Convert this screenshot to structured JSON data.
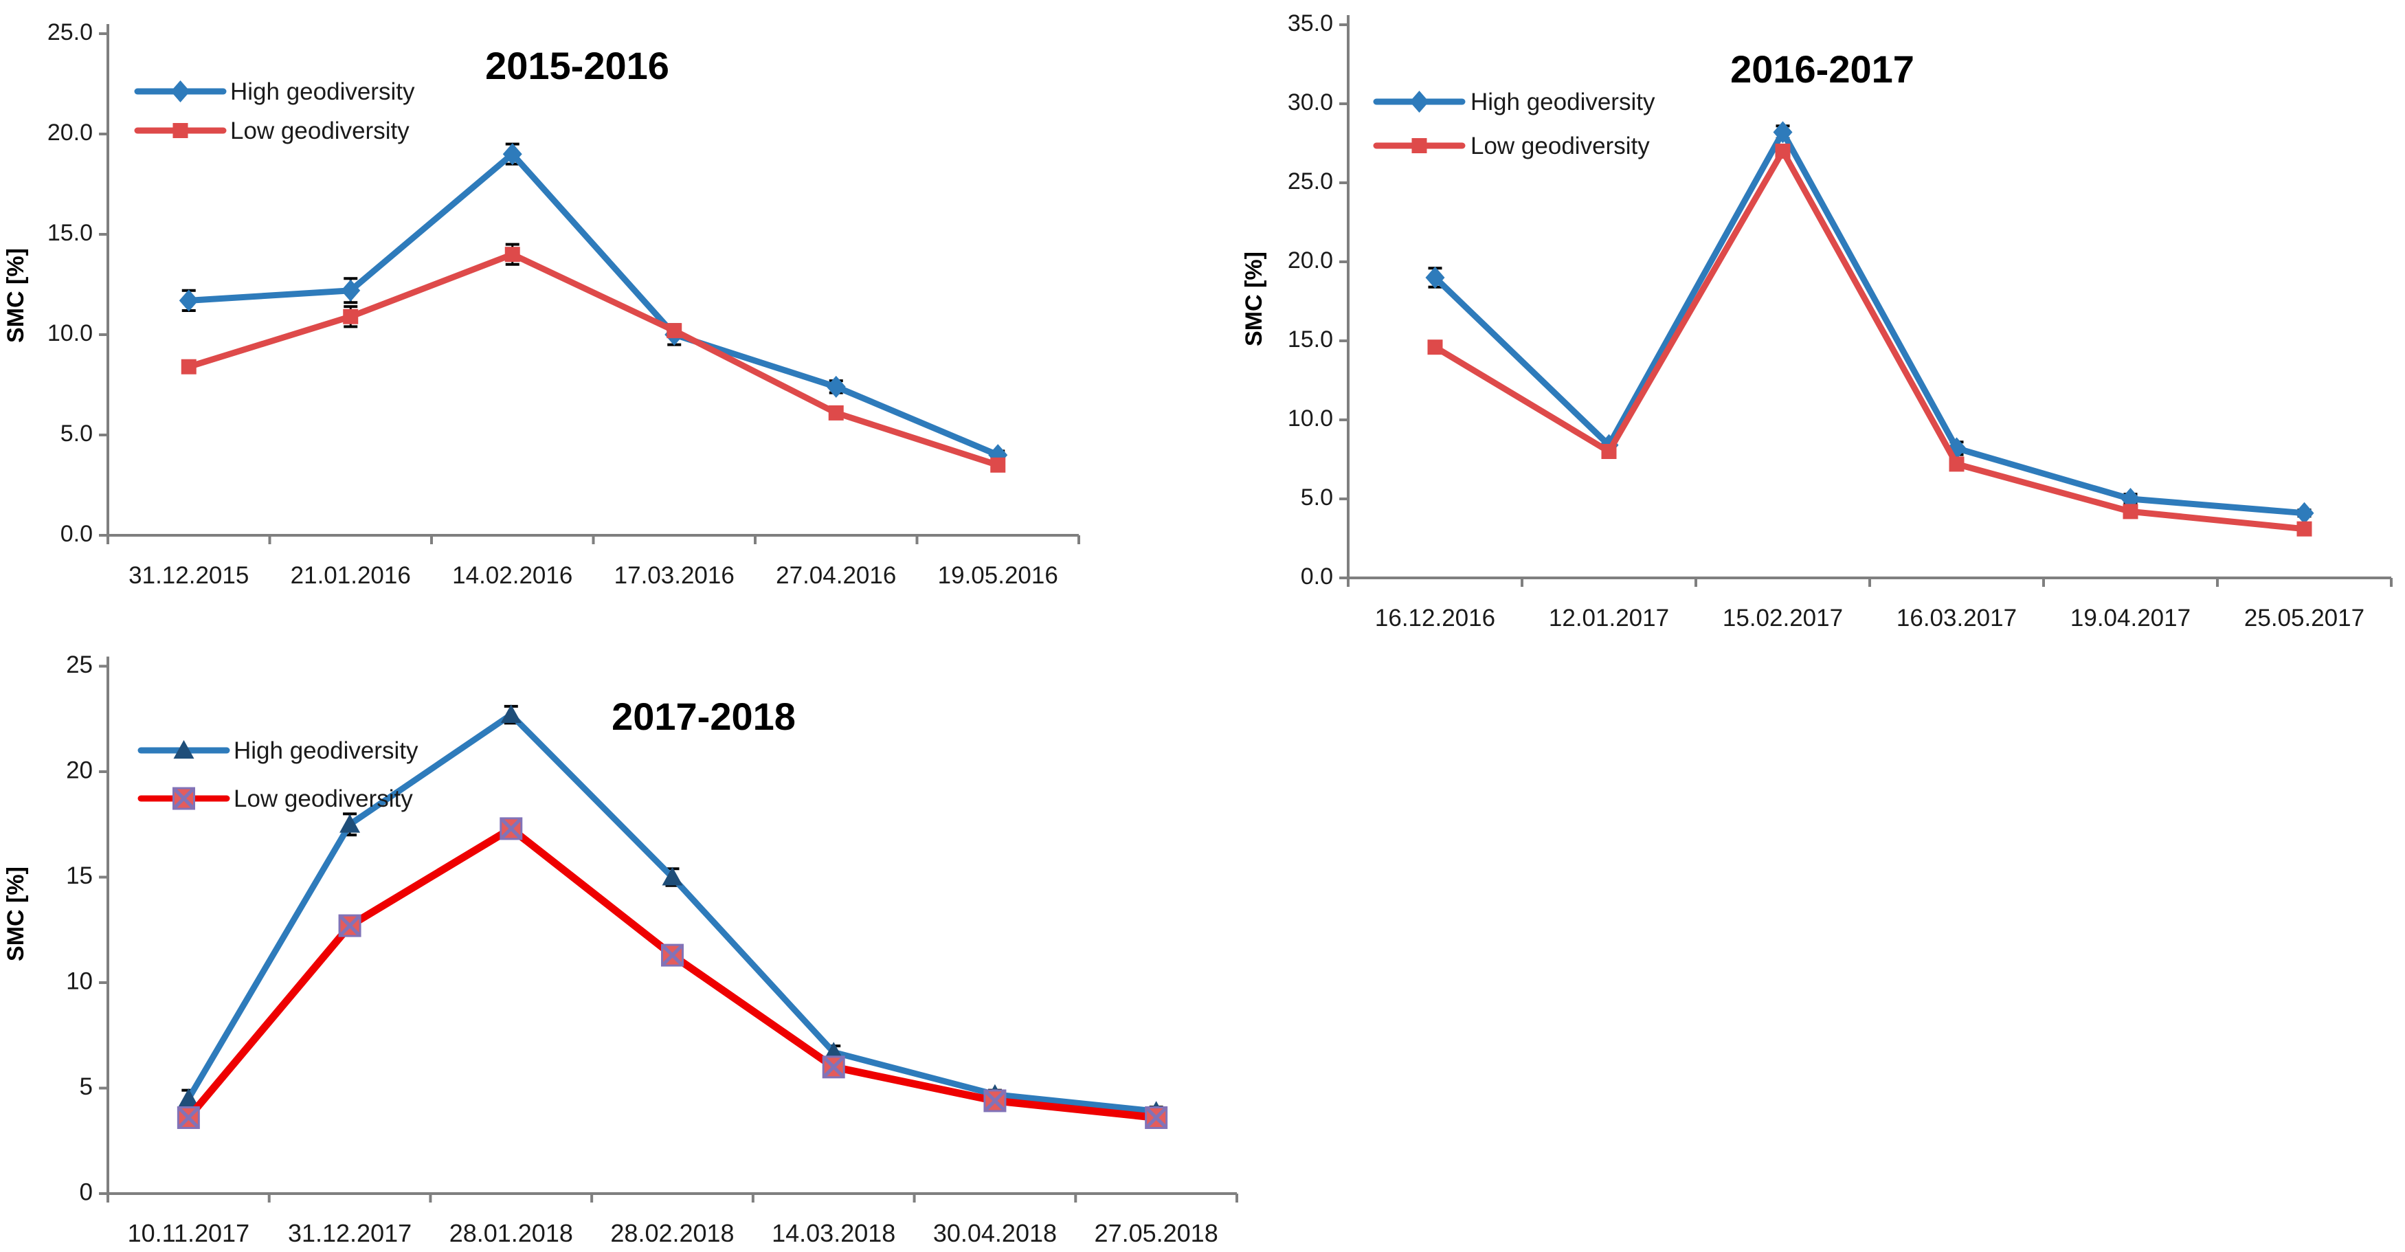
{
  "figure_background": "#ffffff",
  "chart_data": [
    {
      "type": "line",
      "title": "2015-2016",
      "ylabel": "SMC [%]",
      "xlabel": "",
      "grid": false,
      "legend_position": "top-left-inside",
      "y_axis": {
        "min": 0,
        "max": 25,
        "step": 5,
        "decimals": 1
      },
      "categories": [
        "31.12.2015",
        "21.01.2016",
        "14.02.2016",
        "17.03.2016",
        "27.04.2016",
        "19.05.2016"
      ],
      "series": [
        {
          "name": "High geodiversity",
          "color": "#2E7BBB",
          "marker": "diamond",
          "marker_color": "#2E7BBB",
          "line_width": 9,
          "values": [
            11.7,
            12.2,
            19.0,
            10.0,
            7.4,
            4.0
          ],
          "errors": [
            0.5,
            0.6,
            0.5,
            0.5,
            0.3,
            0.2
          ]
        },
        {
          "name": "Low geodiversity",
          "color": "#DE4A4A",
          "marker": "square",
          "marker_color": "#DE4A4A",
          "line_width": 9,
          "values": [
            8.4,
            10.9,
            14.0,
            10.2,
            6.1,
            3.5
          ],
          "errors": [
            0.2,
            0.5,
            0.5,
            0.3,
            0.2,
            0.2
          ]
        }
      ]
    },
    {
      "type": "line",
      "title": "2016-2017",
      "ylabel": "SMC [%]",
      "xlabel": "",
      "grid": false,
      "legend_position": "top-left-inside",
      "y_axis": {
        "min": 0,
        "max": 35,
        "step": 5,
        "decimals": 1
      },
      "categories": [
        "16.12.2016",
        "12.01.2017",
        "15.02.2017",
        "16.03.2017",
        "19.04.2017",
        "25.05.2017"
      ],
      "series": [
        {
          "name": "High geodiversity",
          "color": "#2E7BBB",
          "marker": "diamond",
          "marker_color": "#2E7BBB",
          "line_width": 9,
          "values": [
            19.0,
            8.4,
            28.2,
            8.2,
            5.0,
            4.1
          ],
          "errors": [
            0.6,
            0.3,
            0.4,
            0.4,
            0.3,
            0.2
          ]
        },
        {
          "name": "Low geodiversity",
          "color": "#DE4A4A",
          "marker": "square",
          "marker_color": "#DE4A4A",
          "line_width": 9,
          "values": [
            14.6,
            8.0,
            27.0,
            7.2,
            4.2,
            3.1
          ],
          "errors": [
            0.2,
            0.2,
            0.3,
            0.2,
            0.2,
            0.2
          ]
        }
      ]
    },
    {
      "type": "line",
      "title": "2017-2018",
      "ylabel": "SMC [%]",
      "xlabel": "",
      "grid": false,
      "legend_position": "top-left-inside",
      "y_axis": {
        "min": 0,
        "max": 25,
        "step": 5,
        "decimals": 0
      },
      "categories": [
        "10.11.2017",
        "31.12.2017",
        "28.01.2018",
        "28.02.2018",
        "14.03.2018",
        "30.04.2018",
        "27.05.2018"
      ],
      "series": [
        {
          "name": "High geodiversity",
          "color": "#2E7BBB",
          "marker": "triangle",
          "marker_color": "#1F4E79",
          "line_width": 9,
          "values": [
            4.5,
            17.5,
            22.7,
            15.0,
            6.7,
            4.7,
            3.9
          ],
          "errors": [
            0.4,
            0.5,
            0.4,
            0.4,
            0.3,
            0.2,
            0.2
          ]
        },
        {
          "name": "Low geodiversity",
          "color": "#EE0000",
          "marker": "xsquare",
          "marker_color": "#E45C5C",
          "x_color": "#8173B8",
          "line_width": 11,
          "values": [
            3.6,
            12.7,
            17.3,
            11.3,
            6.0,
            4.4,
            3.6
          ],
          "errors": [
            0.2,
            0.3,
            0.3,
            0.3,
            0.3,
            0.2,
            0.2
          ]
        }
      ]
    }
  ],
  "style": {
    "axis_color": "#7F7F7F",
    "error_bar_color": "#000000",
    "tick_label_color": "#1a1a1a"
  }
}
